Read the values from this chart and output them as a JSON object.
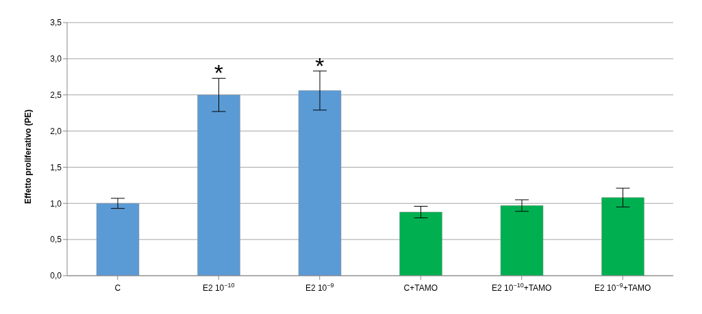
{
  "chart_data": {
    "type": "bar",
    "ylabel": "Effetto proliferativo (PE)",
    "categories": [
      "C",
      "E2 10$^{−10}$",
      "E2 10$^{−9}$",
      "C+TAMO",
      "E2 10$^{−10}$+TAMO",
      "E2 10$^{−9}$+TAMO"
    ],
    "values": [
      1.0,
      2.5,
      2.56,
      0.88,
      0.97,
      1.08
    ],
    "errors": [
      0.07,
      0.23,
      0.27,
      0.08,
      0.08,
      0.13
    ],
    "colors": [
      "#5b9bd5",
      "#5b9bd5",
      "#5b9bd5",
      "#00b050",
      "#00b050",
      "#00b050"
    ],
    "ylim": [
      0,
      3.5
    ],
    "yticks": [
      {
        "value": 0,
        "label": "0,0"
      },
      {
        "value": 0.5,
        "label": "0,5"
      },
      {
        "value": 1,
        "label": "1,0"
      },
      {
        "value": 1.5,
        "label": "1,5"
      },
      {
        "value": 2,
        "label": "2,0"
      },
      {
        "value": 2.5,
        "label": "2,5"
      },
      {
        "value": 3,
        "label": "3,0"
      },
      {
        "value": 3.5,
        "label": "3,5"
      }
    ],
    "grid": "y",
    "legend": false,
    "annotations": [
      {
        "text": "*",
        "x": "E2 10$^{−10}$",
        "y": 2.73
      },
      {
        "text": "*",
        "x": "E2 10$^{−9}$",
        "y": 2.83
      }
    ]
  }
}
